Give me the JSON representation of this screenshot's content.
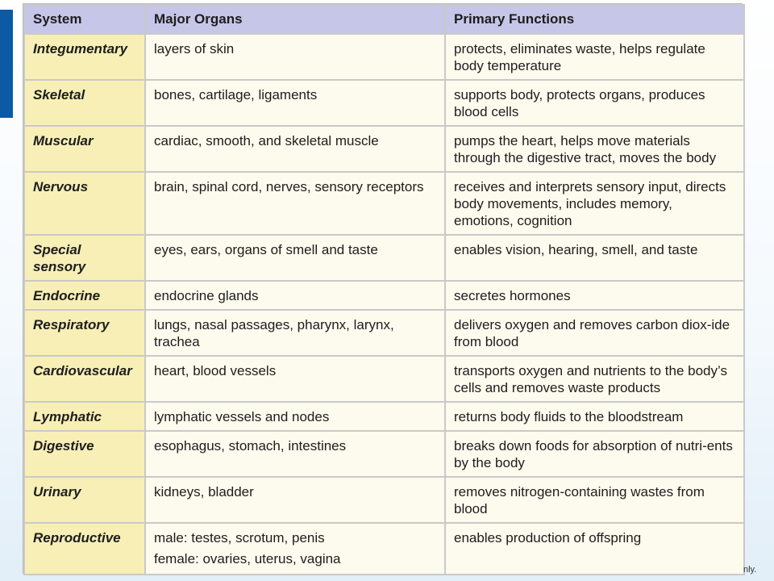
{
  "table": {
    "headers": [
      "System",
      "Major Organs",
      "Primary Functions"
    ],
    "rows": [
      {
        "system": "Integumentary",
        "organs": [
          "layers of skin"
        ],
        "functions": "protects, eliminates waste, helps regulate body temperature"
      },
      {
        "system": "Skeletal",
        "organs": [
          "bones, cartilage, ligaments"
        ],
        "functions": "supports body, protects organs, produces blood cells"
      },
      {
        "system": "Muscular",
        "organs": [
          "cardiac, smooth, and skeletal muscle"
        ],
        "functions": "pumps the heart, helps move materials through the digestive tract, moves the body"
      },
      {
        "system": "Nervous",
        "organs": [
          "brain, spinal cord, nerves, sensory receptors"
        ],
        "functions": "receives and interprets sensory input, directs body movements, includes memory, emotions, cognition"
      },
      {
        "system": "Special sensory",
        "organs": [
          "eyes, ears, organs of smell and taste"
        ],
        "functions": "enables vision, hearing, smell, and taste"
      },
      {
        "system": "Endocrine",
        "organs": [
          "endocrine glands"
        ],
        "functions": "secretes hormones"
      },
      {
        "system": "Respiratory",
        "organs": [
          "lungs, nasal passages, pharynx, larynx, trachea"
        ],
        "functions": "delivers oxygen and removes carbon diox-ide from blood"
      },
      {
        "system": "Cardiovascular",
        "organs": [
          "heart, blood vessels"
        ],
        "functions": "transports oxygen and nutrients to the body’s cells and removes waste products"
      },
      {
        "system": "Lymphatic",
        "organs": [
          "lymphatic vessels and nodes"
        ],
        "functions": "returns body fluids to the bloodstream"
      },
      {
        "system": "Digestive",
        "organs": [
          "esophagus, stomach, intestines"
        ],
        "functions": "breaks down foods for absorption of nutri-ents by the body"
      },
      {
        "system": "Urinary",
        "organs": [
          "kidneys, bladder"
        ],
        "functions": "removes nitrogen-containing wastes from blood"
      },
      {
        "system": "Reproductive",
        "organs": [
          "male: testes, scrotum, penis",
          "female: ovaries, uterus, vagina"
        ],
        "functions": "enables production of offspring"
      }
    ]
  },
  "footer_fragment": "nly.",
  "colors": {
    "header_bg": "#c6c6e8",
    "system_col_bg": "#f7efb6",
    "cell_bg": "#fdfaee",
    "accent_tab": "#0c5aa6"
  }
}
